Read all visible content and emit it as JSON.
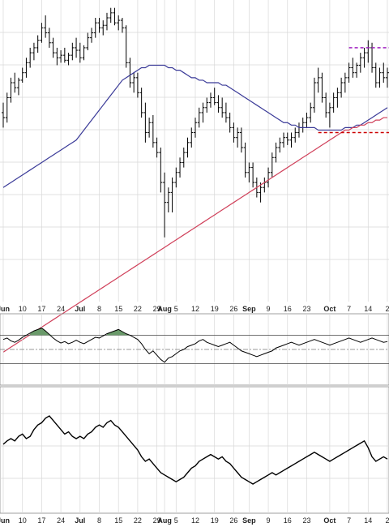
{
  "chart_data": {
    "type": "ohlc",
    "x_tick_labels": [
      {
        "label": "Jun",
        "idx": 0,
        "month": true
      },
      {
        "label": "10",
        "idx": 5
      },
      {
        "label": "17",
        "idx": 10
      },
      {
        "label": "24",
        "idx": 15
      },
      {
        "label": "Jul",
        "idx": 20,
        "month": true
      },
      {
        "label": "8",
        "idx": 25
      },
      {
        "label": "15",
        "idx": 30
      },
      {
        "label": "22",
        "idx": 35
      },
      {
        "label": "29",
        "idx": 40
      },
      {
        "label": "Aug",
        "idx": 42,
        "month": true
      },
      {
        "label": "5",
        "idx": 45
      },
      {
        "label": "12",
        "idx": 50
      },
      {
        "label": "19",
        "idx": 55
      },
      {
        "label": "26",
        "idx": 60
      },
      {
        "label": "Sep",
        "idx": 64,
        "month": true
      },
      {
        "label": "9",
        "idx": 69
      },
      {
        "label": "16",
        "idx": 74
      },
      {
        "label": "23",
        "idx": 79
      },
      {
        "label": "Oct",
        "idx": 85,
        "month": true
      },
      {
        "label": "7",
        "idx": 90
      },
      {
        "label": "14",
        "idx": 95
      },
      {
        "label": "2",
        "idx": 100
      }
    ],
    "price_panel": {
      "ylim": [
        0,
        100
      ],
      "grid": true,
      "bars": [
        {
          "o": 66,
          "h": 70,
          "l": 60,
          "c": 64
        },
        {
          "o": 64,
          "h": 74,
          "l": 62,
          "c": 72
        },
        {
          "o": 72,
          "h": 80,
          "l": 70,
          "c": 78
        },
        {
          "o": 78,
          "h": 82,
          "l": 74,
          "c": 76
        },
        {
          "o": 76,
          "h": 80,
          "l": 73,
          "c": 79
        },
        {
          "o": 79,
          "h": 84,
          "l": 78,
          "c": 82
        },
        {
          "o": 82,
          "h": 88,
          "l": 80,
          "c": 86
        },
        {
          "o": 86,
          "h": 92,
          "l": 84,
          "c": 90
        },
        {
          "o": 90,
          "h": 94,
          "l": 87,
          "c": 92
        },
        {
          "o": 92,
          "h": 97,
          "l": 90,
          "c": 95
        },
        {
          "o": 95,
          "h": 102,
          "l": 94,
          "c": 100
        },
        {
          "o": 100,
          "h": 105,
          "l": 96,
          "c": 98
        },
        {
          "o": 98,
          "h": 100,
          "l": 92,
          "c": 94
        },
        {
          "o": 94,
          "h": 96,
          "l": 88,
          "c": 90
        },
        {
          "o": 90,
          "h": 92,
          "l": 85,
          "c": 88
        },
        {
          "o": 88,
          "h": 91,
          "l": 86,
          "c": 89
        },
        {
          "o": 89,
          "h": 92,
          "l": 86,
          "c": 87
        },
        {
          "o": 87,
          "h": 90,
          "l": 85,
          "c": 89
        },
        {
          "o": 89,
          "h": 94,
          "l": 87,
          "c": 92
        },
        {
          "o": 92,
          "h": 96,
          "l": 88,
          "c": 91
        },
        {
          "o": 91,
          "h": 94,
          "l": 86,
          "c": 88
        },
        {
          "o": 88,
          "h": 93,
          "l": 87,
          "c": 92
        },
        {
          "o": 92,
          "h": 98,
          "l": 91,
          "c": 96
        },
        {
          "o": 96,
          "h": 100,
          "l": 94,
          "c": 98
        },
        {
          "o": 98,
          "h": 104,
          "l": 96,
          "c": 102
        },
        {
          "o": 102,
          "h": 104,
          "l": 98,
          "c": 100
        },
        {
          "o": 100,
          "h": 103,
          "l": 97,
          "c": 101
        },
        {
          "o": 101,
          "h": 106,
          "l": 99,
          "c": 104
        },
        {
          "o": 104,
          "h": 108,
          "l": 102,
          "c": 106
        },
        {
          "o": 106,
          "h": 108,
          "l": 101,
          "c": 102
        },
        {
          "o": 102,
          "h": 105,
          "l": 99,
          "c": 103
        },
        {
          "o": 103,
          "h": 104,
          "l": 98,
          "c": 100
        },
        {
          "o": 100,
          "h": 101,
          "l": 84,
          "c": 86
        },
        {
          "o": 86,
          "h": 88,
          "l": 76,
          "c": 78
        },
        {
          "o": 78,
          "h": 82,
          "l": 74,
          "c": 80
        },
        {
          "o": 80,
          "h": 82,
          "l": 72,
          "c": 74
        },
        {
          "o": 74,
          "h": 76,
          "l": 64,
          "c": 66
        },
        {
          "o": 66,
          "h": 70,
          "l": 54,
          "c": 58
        },
        {
          "o": 58,
          "h": 64,
          "l": 56,
          "c": 62
        },
        {
          "o": 62,
          "h": 65,
          "l": 52,
          "c": 54
        },
        {
          "o": 54,
          "h": 56,
          "l": 48,
          "c": 50
        },
        {
          "o": 50,
          "h": 52,
          "l": 34,
          "c": 38
        },
        {
          "o": 38,
          "h": 42,
          "l": 16,
          "c": 30
        },
        {
          "o": 30,
          "h": 36,
          "l": 26,
          "c": 34
        },
        {
          "o": 34,
          "h": 40,
          "l": 26,
          "c": 38
        },
        {
          "o": 38,
          "h": 44,
          "l": 36,
          "c": 42
        },
        {
          "o": 42,
          "h": 48,
          "l": 40,
          "c": 46
        },
        {
          "o": 46,
          "h": 52,
          "l": 44,
          "c": 50
        },
        {
          "o": 50,
          "h": 56,
          "l": 48,
          "c": 54
        },
        {
          "o": 54,
          "h": 60,
          "l": 52,
          "c": 58
        },
        {
          "o": 58,
          "h": 64,
          "l": 56,
          "c": 62
        },
        {
          "o": 62,
          "h": 68,
          "l": 60,
          "c": 66
        },
        {
          "o": 66,
          "h": 70,
          "l": 62,
          "c": 68
        },
        {
          "o": 68,
          "h": 72,
          "l": 66,
          "c": 70
        },
        {
          "o": 70,
          "h": 74,
          "l": 68,
          "c": 72
        },
        {
          "o": 72,
          "h": 76,
          "l": 69,
          "c": 70
        },
        {
          "o": 70,
          "h": 73,
          "l": 66,
          "c": 68
        },
        {
          "o": 68,
          "h": 72,
          "l": 64,
          "c": 66
        },
        {
          "o": 66,
          "h": 70,
          "l": 62,
          "c": 64
        },
        {
          "o": 64,
          "h": 66,
          "l": 58,
          "c": 60
        },
        {
          "o": 60,
          "h": 62,
          "l": 54,
          "c": 56
        },
        {
          "o": 56,
          "h": 60,
          "l": 52,
          "c": 58
        },
        {
          "o": 58,
          "h": 60,
          "l": 50,
          "c": 52
        },
        {
          "o": 52,
          "h": 54,
          "l": 40,
          "c": 42
        },
        {
          "o": 42,
          "h": 46,
          "l": 38,
          "c": 44
        },
        {
          "o": 44,
          "h": 46,
          "l": 36,
          "c": 38
        },
        {
          "o": 38,
          "h": 40,
          "l": 32,
          "c": 34
        },
        {
          "o": 34,
          "h": 38,
          "l": 30,
          "c": 36
        },
        {
          "o": 36,
          "h": 40,
          "l": 34,
          "c": 38
        },
        {
          "o": 38,
          "h": 44,
          "l": 36,
          "c": 42
        },
        {
          "o": 42,
          "h": 50,
          "l": 40,
          "c": 48
        },
        {
          "o": 48,
          "h": 54,
          "l": 46,
          "c": 52
        },
        {
          "o": 52,
          "h": 56,
          "l": 50,
          "c": 54
        },
        {
          "o": 54,
          "h": 58,
          "l": 52,
          "c": 56
        },
        {
          "o": 56,
          "h": 58,
          "l": 53,
          "c": 55
        },
        {
          "o": 55,
          "h": 58,
          "l": 52,
          "c": 56
        },
        {
          "o": 56,
          "h": 60,
          "l": 54,
          "c": 58
        },
        {
          "o": 58,
          "h": 62,
          "l": 56,
          "c": 60
        },
        {
          "o": 60,
          "h": 64,
          "l": 58,
          "c": 62
        },
        {
          "o": 62,
          "h": 66,
          "l": 60,
          "c": 64
        },
        {
          "o": 64,
          "h": 70,
          "l": 62,
          "c": 68
        },
        {
          "o": 68,
          "h": 80,
          "l": 66,
          "c": 78
        },
        {
          "o": 78,
          "h": 84,
          "l": 74,
          "c": 80
        },
        {
          "o": 80,
          "h": 82,
          "l": 70,
          "c": 72
        },
        {
          "o": 72,
          "h": 74,
          "l": 64,
          "c": 66
        },
        {
          "o": 66,
          "h": 70,
          "l": 60,
          "c": 68
        },
        {
          "o": 68,
          "h": 74,
          "l": 66,
          "c": 72
        },
        {
          "o": 72,
          "h": 76,
          "l": 68,
          "c": 74
        },
        {
          "o": 74,
          "h": 80,
          "l": 72,
          "c": 78
        },
        {
          "o": 78,
          "h": 82,
          "l": 74,
          "c": 80
        },
        {
          "o": 80,
          "h": 86,
          "l": 78,
          "c": 84
        },
        {
          "o": 84,
          "h": 88,
          "l": 80,
          "c": 82
        },
        {
          "o": 82,
          "h": 86,
          "l": 80,
          "c": 85
        },
        {
          "o": 85,
          "h": 90,
          "l": 82,
          "c": 88
        },
        {
          "o": 88,
          "h": 92,
          "l": 84,
          "c": 90
        },
        {
          "o": 90,
          "h": 95,
          "l": 86,
          "c": 92
        },
        {
          "o": 92,
          "h": 94,
          "l": 82,
          "c": 84
        },
        {
          "o": 84,
          "h": 86,
          "l": 76,
          "c": 78
        },
        {
          "o": 78,
          "h": 84,
          "l": 76,
          "c": 82
        },
        {
          "o": 82,
          "h": 86,
          "l": 78,
          "c": 80
        },
        {
          "o": 80,
          "h": 84,
          "l": 76,
          "c": 82
        }
      ],
      "ma_50": [
        36,
        37,
        38,
        39,
        40,
        41,
        42,
        43,
        44,
        45,
        46,
        47,
        48,
        49,
        50,
        51,
        52,
        53,
        54,
        55,
        57,
        59,
        61,
        63,
        65,
        67,
        69,
        71,
        73,
        75,
        77,
        79,
        80,
        81,
        82,
        83,
        84,
        84,
        85,
        85,
        85,
        85,
        85,
        84,
        84,
        83,
        83,
        82,
        81,
        80,
        80,
        79,
        79,
        78,
        78,
        78,
        78,
        77,
        77,
        76,
        75,
        74,
        73,
        72,
        71,
        70,
        69,
        68,
        67,
        66,
        65,
        64,
        63,
        62,
        62,
        61,
        61,
        60,
        60,
        60,
        60,
        60,
        59,
        59,
        59,
        59,
        59,
        59,
        59,
        60,
        60,
        60,
        61,
        61,
        62,
        63,
        64,
        65,
        66,
        67,
        68
      ],
      "ma_200": [
        -30,
        -29,
        -28,
        -27,
        -26,
        -25,
        -24,
        -23,
        -22,
        -21,
        -20,
        -19,
        -18,
        -17,
        -16,
        -15,
        -14,
        -13,
        -12,
        -11,
        -10,
        -9,
        -8,
        -7,
        -6,
        -5,
        -4,
        -3,
        -2,
        -1,
        0,
        1,
        2,
        3,
        4,
        5,
        6,
        7,
        8,
        9,
        10,
        11,
        12,
        13,
        14,
        15,
        16,
        17,
        18,
        19,
        20,
        21,
        22,
        23,
        24,
        25,
        26,
        27,
        28,
        29,
        30,
        31,
        32,
        33,
        34,
        35,
        36,
        37,
        38,
        39,
        40,
        41,
        42,
        43,
        44,
        45,
        46,
        47,
        48,
        49,
        50,
        51,
        52,
        53,
        54,
        55,
        56,
        57,
        58,
        59,
        59,
        60,
        60,
        61,
        61,
        62,
        62,
        63,
        63,
        64,
        64
      ],
      "resistance_level": 92,
      "resistance_from_idx": 90,
      "support_level": 58,
      "support_from_idx": 82,
      "colors": {
        "bars": "#000000",
        "ma_50": "#3a3a98",
        "ma_200": "#d0405a",
        "resistance": "#a020c0",
        "support": "#cc0000",
        "grid": "#d8d8d8"
      }
    },
    "oscillator_panel": {
      "ylim": [
        0,
        100
      ],
      "reference_levels": [
        70,
        50,
        30
      ],
      "values": [
        64,
        66,
        62,
        60,
        63,
        67,
        70,
        73,
        76,
        78,
        80,
        76,
        71,
        66,
        62,
        59,
        61,
        58,
        60,
        63,
        60,
        58,
        61,
        64,
        67,
        66,
        69,
        72,
        74,
        76,
        78,
        75,
        72,
        70,
        67,
        64,
        58,
        50,
        44,
        48,
        42,
        36,
        32,
        38,
        40,
        44,
        48,
        50,
        54,
        56,
        58,
        62,
        64,
        60,
        58,
        56,
        54,
        56,
        58,
        60,
        56,
        52,
        48,
        46,
        44,
        42,
        40,
        42,
        44,
        46,
        48,
        52,
        54,
        56,
        58,
        60,
        58,
        56,
        58,
        60,
        62,
        64,
        62,
        60,
        58,
        56,
        58,
        60,
        62,
        64,
        66,
        64,
        62,
        60,
        62,
        64,
        66,
        64,
        62,
        60,
        61
      ],
      "fill_color": "#6a9a6a",
      "line_color": "#000000"
    },
    "ratio_panel": {
      "ylim": [
        0,
        100
      ],
      "values": [
        55,
        58,
        60,
        58,
        62,
        64,
        60,
        62,
        68,
        72,
        74,
        78,
        80,
        76,
        72,
        68,
        64,
        66,
        62,
        60,
        62,
        60,
        64,
        66,
        70,
        72,
        70,
        74,
        76,
        72,
        70,
        66,
        62,
        58,
        54,
        50,
        44,
        40,
        42,
        38,
        34,
        30,
        28,
        26,
        24,
        22,
        24,
        26,
        30,
        34,
        36,
        40,
        42,
        44,
        46,
        44,
        42,
        44,
        40,
        38,
        34,
        30,
        26,
        24,
        22,
        20,
        22,
        24,
        26,
        28,
        30,
        28,
        30,
        32,
        34,
        36,
        38,
        40,
        42,
        44,
        46,
        48,
        46,
        44,
        42,
        40,
        42,
        44,
        46,
        48,
        50,
        52,
        54,
        56,
        58,
        52,
        44,
        40,
        42,
        44,
        42
      ],
      "line_color": "#000000"
    }
  }
}
